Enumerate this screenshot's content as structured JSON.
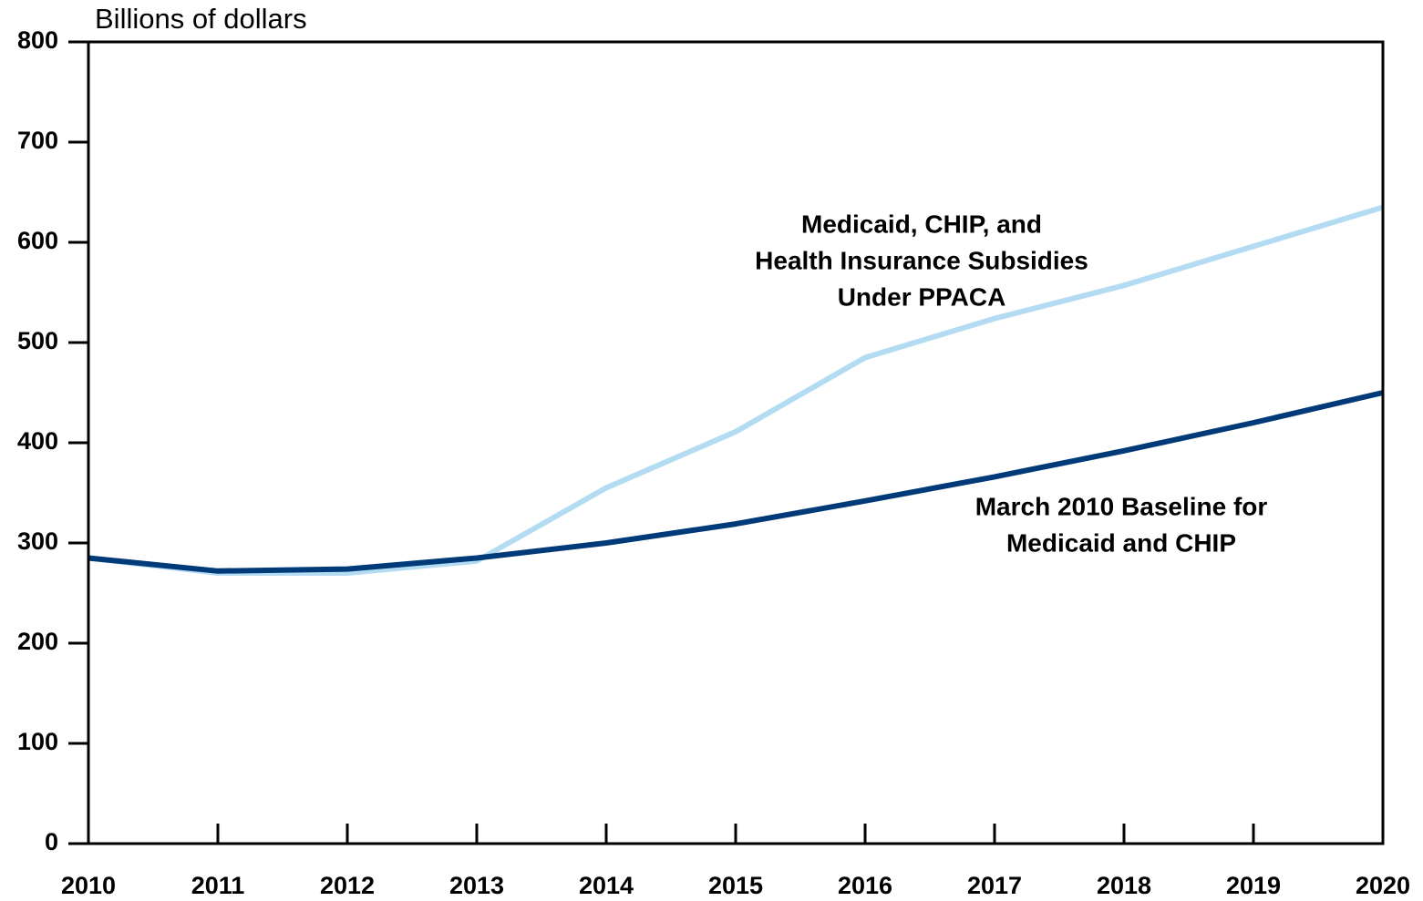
{
  "chart_data": {
    "type": "line",
    "y_label": "Billions of dollars",
    "x": [
      2010,
      2011,
      2012,
      2013,
      2014,
      2015,
      2016,
      2017,
      2018,
      2019,
      2020
    ],
    "series": [
      {
        "color": "#b3dcf3",
        "values": [
          285,
          270,
          270,
          282,
          355,
          411,
          485,
          524,
          557,
          596,
          635
        ]
      },
      {
        "color": "#003a78",
        "values": [
          285,
          272,
          274,
          285,
          300,
          319,
          342,
          366,
          392,
          420,
          450
        ]
      }
    ],
    "annotations": [
      {
        "lines": [
          "Medicaid, CHIP, and",
          "Health Insurance Subsidies",
          "Under PPACA"
        ]
      },
      {
        "lines": [
          "March 2010 Baseline for",
          "Medicaid and CHIP"
        ]
      }
    ],
    "xlim": [
      2010,
      2020
    ],
    "xticks": [
      2010,
      2011,
      2012,
      2013,
      2014,
      2015,
      2016,
      2017,
      2018,
      2019,
      2020
    ],
    "ylim": [
      0,
      800
    ],
    "yticks": [
      0,
      100,
      200,
      300,
      400,
      500,
      600,
      700,
      800
    ],
    "grid": false
  }
}
